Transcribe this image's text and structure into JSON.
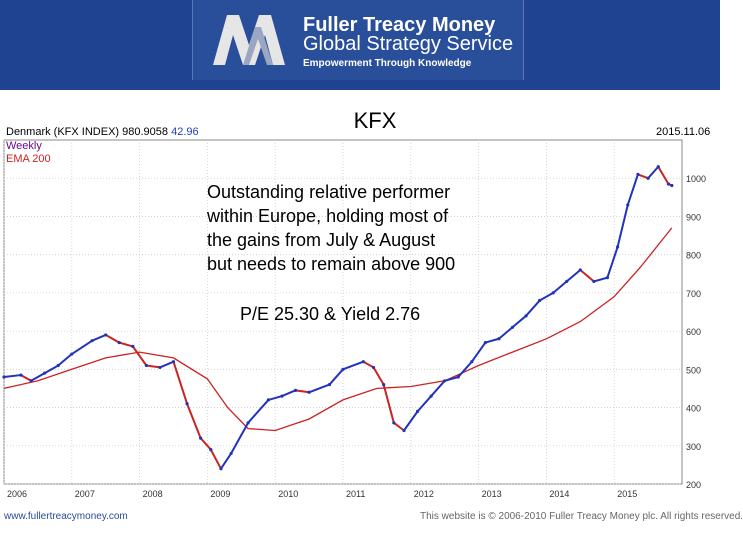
{
  "banner": {
    "brand_name": "Fuller Treacy Money",
    "service": "Global Strategy Service",
    "tagline": "Empowerment Through Knowledge",
    "bg_color": "#1f4390"
  },
  "slide_title": "KFX",
  "chart_header": {
    "instrument": "Denmark (KFX INDEX) 980.9058",
    "change": "42.96",
    "change_color": "#1f3fbf",
    "date": "2015.11.06",
    "legend": [
      {
        "label": "Weekly",
        "color": "#6a0a8a"
      },
      {
        "label": "EMA 200",
        "color": "#cc2222"
      }
    ]
  },
  "annotation": {
    "lines": [
      "Outstanding relative performer",
      "within Europe, holding most of",
      "the gains from July & August",
      "but needs to remain above 900"
    ],
    "pe": "P/E 25.30 & Yield 2.76"
  },
  "chart_data": {
    "type": "line",
    "title": "Denmark (KFX INDEX) 980.9058",
    "ylim": [
      200,
      1100
    ],
    "y_ticks": [
      "1000",
      "900",
      "800",
      "700",
      "600",
      "500",
      "400",
      "300",
      "200"
    ],
    "x_ticks": [
      "2006",
      "2007",
      "2008",
      "2009",
      "2010",
      "2011",
      "2012",
      "2013",
      "2014",
      "2015"
    ],
    "grid": true,
    "series": [
      {
        "name": "Weekly",
        "color": "#2233bb",
        "down_color": "#cc2222",
        "x": [
          2006.0,
          2006.25,
          2006.4,
          2006.6,
          2006.8,
          2007.0,
          2007.3,
          2007.5,
          2007.7,
          2007.9,
          2008.1,
          2008.3,
          2008.5,
          2008.7,
          2008.9,
          2009.05,
          2009.2,
          2009.35,
          2009.6,
          2009.9,
          2010.1,
          2010.3,
          2010.5,
          2010.8,
          2011.0,
          2011.3,
          2011.45,
          2011.6,
          2011.75,
          2011.9,
          2012.1,
          2012.3,
          2012.5,
          2012.7,
          2012.9,
          2013.1,
          2013.3,
          2013.5,
          2013.7,
          2013.9,
          2014.1,
          2014.3,
          2014.5,
          2014.7,
          2014.9,
          2015.05,
          2015.2,
          2015.35,
          2015.5,
          2015.65,
          2015.8,
          2015.85
        ],
        "values": [
          480,
          485,
          470,
          490,
          510,
          540,
          575,
          590,
          570,
          560,
          510,
          505,
          520,
          410,
          320,
          290,
          240,
          280,
          360,
          420,
          430,
          445,
          440,
          460,
          500,
          520,
          505,
          460,
          360,
          340,
          390,
          430,
          470,
          480,
          520,
          570,
          580,
          610,
          640,
          680,
          700,
          730,
          760,
          730,
          740,
          820,
          930,
          1010,
          1000,
          1030,
          985,
          981
        ]
      },
      {
        "name": "EMA 200",
        "color": "#cc2222",
        "x": [
          2006.0,
          2006.5,
          2007.0,
          2007.5,
          2008.0,
          2008.5,
          2009.0,
          2009.3,
          2009.6,
          2010.0,
          2010.5,
          2011.0,
          2011.5,
          2012.0,
          2012.5,
          2013.0,
          2013.5,
          2014.0,
          2014.5,
          2015.0,
          2015.4,
          2015.85
        ],
        "values": [
          450,
          470,
          500,
          530,
          545,
          530,
          475,
          400,
          345,
          340,
          370,
          420,
          450,
          455,
          470,
          510,
          545,
          580,
          625,
          690,
          770,
          870
        ]
      }
    ]
  },
  "footer": {
    "left": "www.fullertreacymoney.com",
    "right": "This website is © 2006-2010 Fuller Treacy Money plc. All rights reserved."
  }
}
